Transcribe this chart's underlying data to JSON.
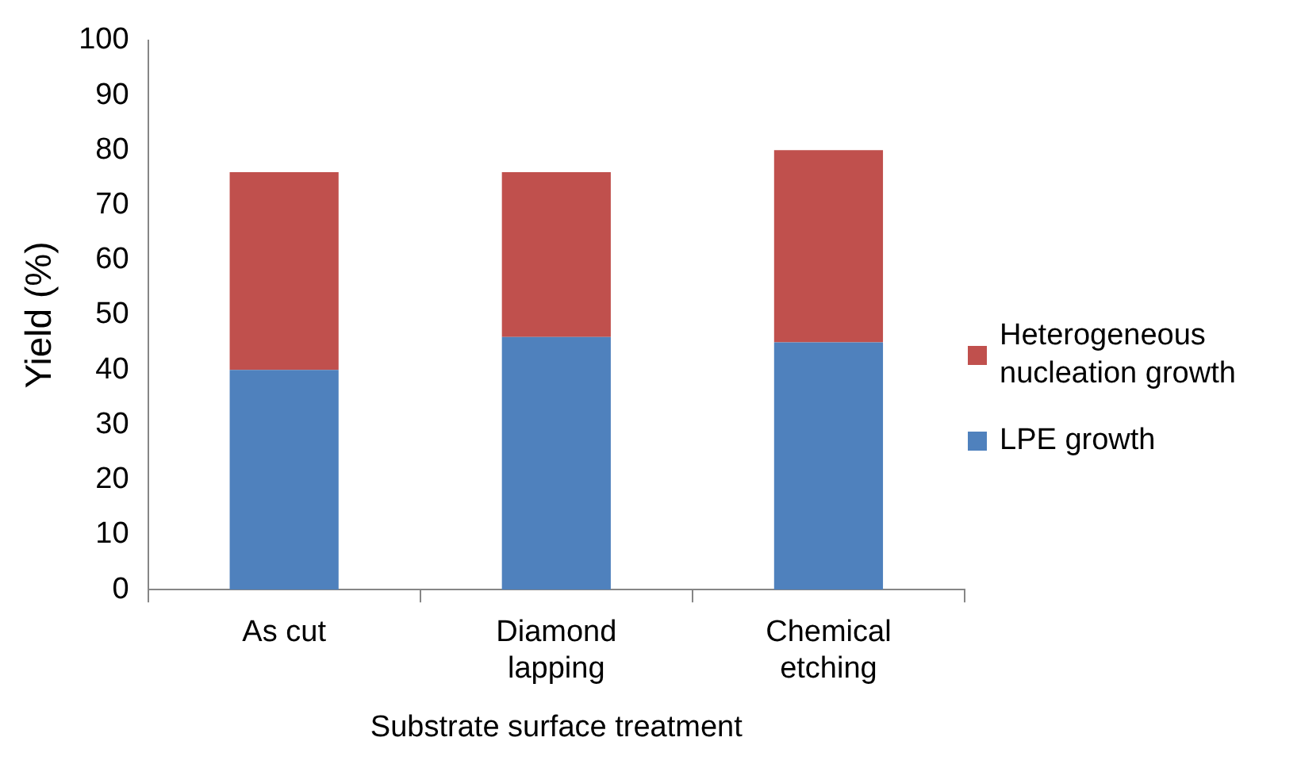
{
  "chart_data": {
    "type": "bar",
    "stacked": true,
    "xlabel": "Substrate surface treatment",
    "ylabel": "Yield (%)",
    "categories": [
      "As cut",
      "Diamond lapping",
      "Chemical etching"
    ],
    "series": [
      {
        "name": "LPE growth",
        "color": "#4f81bd",
        "values": [
          40,
          46,
          45
        ]
      },
      {
        "name": "Heterogeneous nucleation growth",
        "color": "#c0504d",
        "values": [
          36,
          30,
          35
        ]
      }
    ],
    "ylim": [
      0,
      100
    ],
    "yticks": [
      0,
      10,
      20,
      30,
      40,
      50,
      60,
      70,
      80,
      90,
      100
    ],
    "grid": false,
    "legend": "right"
  }
}
